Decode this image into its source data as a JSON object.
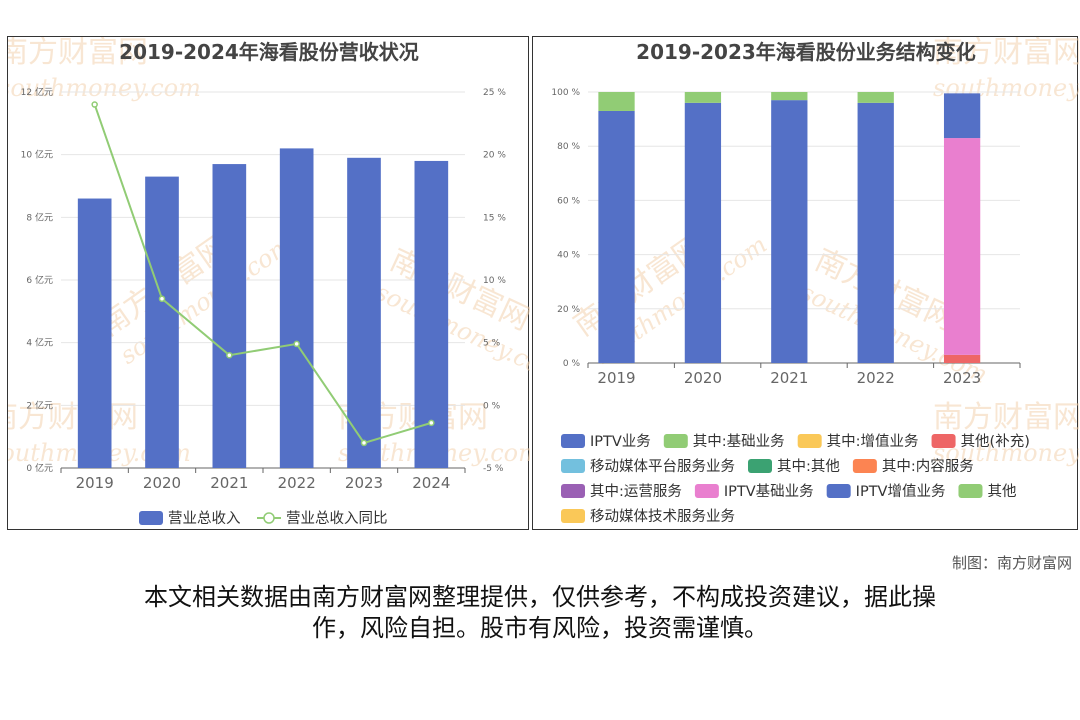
{
  "chart_data": [
    {
      "type": "bar",
      "title": "2019-2024年海看股份营收状况",
      "categories": [
        "2019",
        "2020",
        "2021",
        "2022",
        "2023",
        "2024"
      ],
      "series": [
        {
          "name": "营业总收入",
          "type": "bar",
          "axis": "left",
          "unit": "亿元",
          "color": "#5470c6",
          "values": [
            8.6,
            9.3,
            9.7,
            10.2,
            9.9,
            9.8
          ]
        },
        {
          "name": "营业总收入同比",
          "type": "line",
          "axis": "right",
          "unit": "%",
          "color": "#91cc75",
          "values": [
            24.0,
            8.5,
            4.0,
            4.9,
            -3.0,
            -1.4
          ]
        }
      ],
      "ylim_left": [
        0,
        12
      ],
      "yticks_left": [
        "0 亿元",
        "2 亿元",
        "4 亿元",
        "6 亿元",
        "8 亿元",
        "10 亿元",
        "12 亿元"
      ],
      "ylim_right": [
        -5,
        25
      ],
      "yticks_right": [
        "-5 %",
        "0 %",
        "5 %",
        "10 %",
        "15 %",
        "20 %",
        "25 %"
      ],
      "grid": true,
      "legend_position": "bottom"
    },
    {
      "type": "bar",
      "stacked": true,
      "title": "2019-2023年海看股份业务结构变化",
      "categories": [
        "2019",
        "2020",
        "2021",
        "2022",
        "2023"
      ],
      "ylim": [
        0,
        100
      ],
      "yticks": [
        "0 %",
        "20 %",
        "40 %",
        "60 %",
        "80 %",
        "100 %"
      ],
      "series": [
        {
          "name": "其他(补充)",
          "color": "#ee6666",
          "values": [
            0,
            0,
            0,
            0,
            3
          ]
        },
        {
          "name": "IPTV基础业务",
          "color": "#e97fcf",
          "values": [
            0,
            0,
            0,
            0,
            80
          ]
        },
        {
          "name": "IPTV增值业务",
          "color": "#5470c6",
          "values": [
            0,
            0,
            0,
            0,
            16.5
          ]
        },
        {
          "name": "IPTV业务",
          "color": "#5470c6",
          "values": [
            93,
            96,
            97,
            96,
            0
          ]
        },
        {
          "name": "其中:基础业务",
          "color": "#91cc75",
          "values": [
            7,
            4,
            3,
            4,
            0
          ]
        }
      ],
      "legend": [
        {
          "name": "IPTV业务",
          "color": "#5470c6"
        },
        {
          "name": "其中:基础业务",
          "color": "#91cc75"
        },
        {
          "name": "其中:增值业务",
          "color": "#fac858"
        },
        {
          "name": "其他(补充)",
          "color": "#ee6666"
        },
        {
          "name": "移动媒体平台服务业务",
          "color": "#73c0de"
        },
        {
          "name": "其中:其他",
          "color": "#3ba272"
        },
        {
          "name": "其中:内容服务",
          "color": "#fc8452"
        },
        {
          "name": "其中:运营服务",
          "color": "#9a60b4"
        },
        {
          "name": "IPTV基础业务",
          "color": "#e97fcf"
        },
        {
          "name": "IPTV增值业务",
          "color": "#5470c6"
        },
        {
          "name": "其他",
          "color": "#91cc75"
        },
        {
          "name": "移动媒体技术服务业务",
          "color": "#fac858"
        }
      ],
      "grid": true,
      "legend_position": "bottom"
    }
  ],
  "watermark": {
    "cn": "南方财富网",
    "en": "southmoney.com"
  },
  "credit": "制图：南方财富网",
  "disclaimer": {
    "line1": "本文相关数据由南方财富网整理提供，仅供参考，不构成投资建议，据此操",
    "line2": "作，风险自担。股市有风险，投资需谨慎。"
  }
}
